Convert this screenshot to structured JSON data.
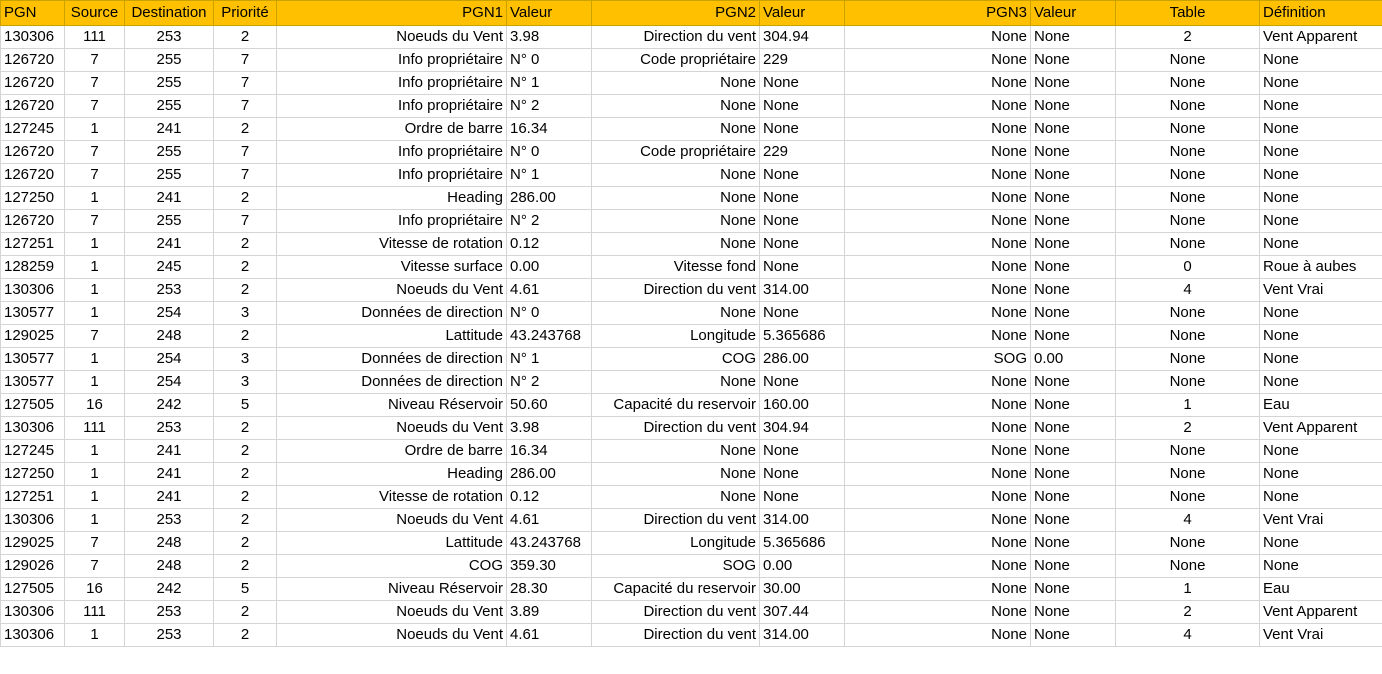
{
  "sheet": {
    "header_color": "#ffc000",
    "columns": [
      {
        "key": "pgn",
        "label": "PGN",
        "align": "left",
        "header_align": "left"
      },
      {
        "key": "source",
        "label": "Source",
        "align": "center",
        "header_align": "center"
      },
      {
        "key": "destination",
        "label": "Destination",
        "align": "center",
        "header_align": "center"
      },
      {
        "key": "priorite",
        "label": "Priorité",
        "align": "center",
        "header_align": "center"
      },
      {
        "key": "pgn1",
        "label": "PGN1",
        "align": "right",
        "header_align": "right"
      },
      {
        "key": "valeur1",
        "label": "Valeur",
        "align": "left",
        "header_align": "left"
      },
      {
        "key": "pgn2",
        "label": "PGN2",
        "align": "right",
        "header_align": "right"
      },
      {
        "key": "valeur2",
        "label": "Valeur",
        "align": "left",
        "header_align": "left"
      },
      {
        "key": "pgn3",
        "label": "PGN3",
        "align": "right",
        "header_align": "right"
      },
      {
        "key": "valeur3",
        "label": "Valeur",
        "align": "left",
        "header_align": "left"
      },
      {
        "key": "table",
        "label": "Table",
        "align": "center",
        "header_align": "center"
      },
      {
        "key": "definition",
        "label": "Définition",
        "align": "left",
        "header_align": "left"
      }
    ],
    "rows": [
      [
        "130306",
        "111",
        "253",
        "2",
        "Noeuds du Vent",
        "3.98",
        "Direction du vent",
        "304.94",
        "None",
        "None",
        "2",
        "Vent Apparent"
      ],
      [
        "126720",
        "7",
        "255",
        "7",
        "Info propriétaire",
        "N° 0",
        "Code propriétaire",
        "229",
        "None",
        "None",
        "None",
        "None"
      ],
      [
        "126720",
        "7",
        "255",
        "7",
        "Info propriétaire",
        "N° 1",
        "None",
        "None",
        "None",
        "None",
        "None",
        "None"
      ],
      [
        "126720",
        "7",
        "255",
        "7",
        "Info propriétaire",
        "N° 2",
        "None",
        "None",
        "None",
        "None",
        "None",
        "None"
      ],
      [
        "127245",
        "1",
        "241",
        "2",
        "Ordre de barre",
        "16.34",
        "None",
        "None",
        "None",
        "None",
        "None",
        "None"
      ],
      [
        "126720",
        "7",
        "255",
        "7",
        "Info propriétaire",
        "N° 0",
        "Code propriétaire",
        "229",
        "None",
        "None",
        "None",
        "None"
      ],
      [
        "126720",
        "7",
        "255",
        "7",
        "Info propriétaire",
        "N° 1",
        "None",
        "None",
        "None",
        "None",
        "None",
        "None"
      ],
      [
        "127250",
        "1",
        "241",
        "2",
        "Heading",
        "286.00",
        "None",
        "None",
        "None",
        "None",
        "None",
        "None"
      ],
      [
        "126720",
        "7",
        "255",
        "7",
        "Info propriétaire",
        "N° 2",
        "None",
        "None",
        "None",
        "None",
        "None",
        "None"
      ],
      [
        "127251",
        "1",
        "241",
        "2",
        "Vitesse de rotation",
        "0.12",
        "None",
        "None",
        "None",
        "None",
        "None",
        "None"
      ],
      [
        "128259",
        "1",
        "245",
        "2",
        "Vitesse surface",
        "0.00",
        "Vitesse fond",
        "None",
        "None",
        "None",
        "0",
        "Roue à aubes"
      ],
      [
        "130306",
        "1",
        "253",
        "2",
        "Noeuds du Vent",
        "4.61",
        "Direction du vent",
        "314.00",
        "None",
        "None",
        "4",
        "Vent Vrai"
      ],
      [
        "130577",
        "1",
        "254",
        "3",
        "Données de direction",
        "N° 0",
        "None",
        "None",
        "None",
        "None",
        "None",
        "None"
      ],
      [
        "129025",
        "7",
        "248",
        "2",
        "Lattitude",
        "43.243768",
        "Longitude",
        "5.365686",
        "None",
        "None",
        "None",
        "None"
      ],
      [
        "130577",
        "1",
        "254",
        "3",
        "Données de direction",
        "N° 1",
        "COG",
        "286.00",
        "SOG",
        "0.00",
        "None",
        "None"
      ],
      [
        "130577",
        "1",
        "254",
        "3",
        "Données de direction",
        "N° 2",
        "None",
        "None",
        "None",
        "None",
        "None",
        "None"
      ],
      [
        "127505",
        "16",
        "242",
        "5",
        "Niveau Réservoir",
        "50.60",
        "Capacité du reservoir",
        "160.00",
        "None",
        "None",
        "1",
        "Eau"
      ],
      [
        "130306",
        "111",
        "253",
        "2",
        "Noeuds du Vent",
        "3.98",
        "Direction du vent",
        "304.94",
        "None",
        "None",
        "2",
        "Vent Apparent"
      ],
      [
        "127245",
        "1",
        "241",
        "2",
        "Ordre de barre",
        "16.34",
        "None",
        "None",
        "None",
        "None",
        "None",
        "None"
      ],
      [
        "127250",
        "1",
        "241",
        "2",
        "Heading",
        "286.00",
        "None",
        "None",
        "None",
        "None",
        "None",
        "None"
      ],
      [
        "127251",
        "1",
        "241",
        "2",
        "Vitesse de rotation",
        "0.12",
        "None",
        "None",
        "None",
        "None",
        "None",
        "None"
      ],
      [
        "130306",
        "1",
        "253",
        "2",
        "Noeuds du Vent",
        "4.61",
        "Direction du vent",
        "314.00",
        "None",
        "None",
        "4",
        "Vent Vrai"
      ],
      [
        "129025",
        "7",
        "248",
        "2",
        "Lattitude",
        "43.243768",
        "Longitude",
        "5.365686",
        "None",
        "None",
        "None",
        "None"
      ],
      [
        "129026",
        "7",
        "248",
        "2",
        "COG",
        "359.30",
        "SOG",
        "0.00",
        "None",
        "None",
        "None",
        "None"
      ],
      [
        "127505",
        "16",
        "242",
        "5",
        "Niveau Réservoir",
        "28.30",
        "Capacité du reservoir",
        "30.00",
        "None",
        "None",
        "1",
        "Eau"
      ],
      [
        "130306",
        "111",
        "253",
        "2",
        "Noeuds du Vent",
        "3.89",
        "Direction du vent",
        "307.44",
        "None",
        "None",
        "2",
        "Vent Apparent"
      ],
      [
        "130306",
        "1",
        "253",
        "2",
        "Noeuds du Vent",
        "4.61",
        "Direction du vent",
        "314.00",
        "None",
        "None",
        "4",
        "Vent Vrai"
      ]
    ]
  }
}
